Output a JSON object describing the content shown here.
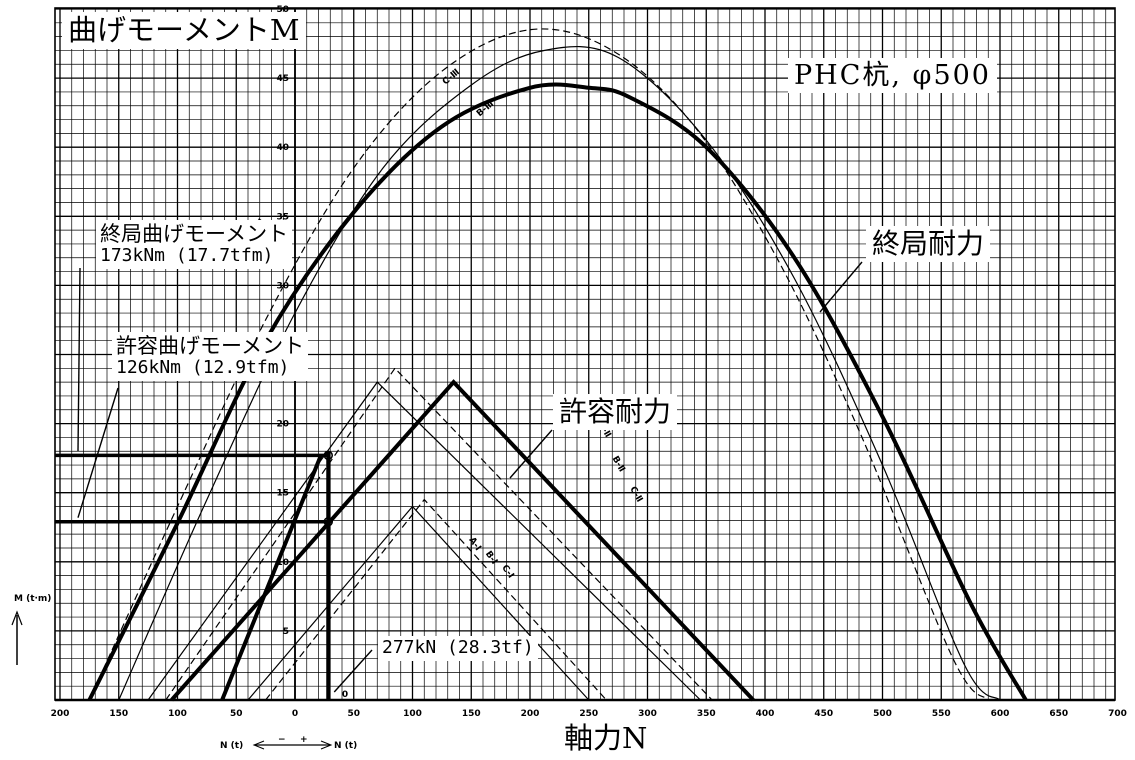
{
  "chart_data": {
    "type": "line",
    "title": "PHC杭, φ500",
    "ylabel": "曲げモーメントM",
    "xlabel": "軸力N",
    "xlim": [
      -200,
      700
    ],
    "ylim": [
      0,
      50
    ],
    "grid": true,
    "x_ticks": [
      "200",
      "150",
      "100",
      "50",
      "0",
      "50",
      "100",
      "150",
      "200",
      "250",
      "300",
      "350",
      "400",
      "450",
      "500",
      "550",
      "600",
      "650",
      "700"
    ],
    "y_ticks": [
      "5",
      "10",
      "15",
      "20",
      "25",
      "30",
      "35",
      "40",
      "45",
      "50"
    ],
    "y_unit": "M (t·m)",
    "direction": {
      "left": "N (t)",
      "minus": "−",
      "plus": "+",
      "right": "N (t)"
    },
    "series": [
      {
        "name": "終局耐力",
        "style": "thick",
        "x": [
          -175,
          -100,
          -25,
          50,
          125,
          200,
          250,
          285,
          350,
          425,
          500,
          575,
          622
        ],
        "y": [
          0,
          12.8,
          26,
          35.3,
          41.5,
          44.3,
          44.3,
          43.6,
          40,
          32,
          20.5,
          7,
          0
        ]
      },
      {
        "name": "A-Ⅱ",
        "style": "thin",
        "x": [
          -150,
          -75,
          0,
          75,
          150,
          212,
          275,
          350,
          425,
          500,
          570,
          600
        ],
        "y": [
          0,
          14.5,
          28,
          38.5,
          44.5,
          47,
          46.5,
          40.5,
          30.5,
          17,
          2.5,
          0
        ]
      },
      {
        "name": "C-Ⅲ",
        "style": "dashed",
        "x": [
          -175,
          -100,
          -25,
          50,
          125,
          200,
          270,
          340,
          410,
          480,
          560,
          590
        ],
        "y": [
          0,
          14,
          27.5,
          38.5,
          45.5,
          48.5,
          47,
          41.5,
          32,
          19.5,
          3,
          0
        ]
      },
      {
        "name": "許容耐力",
        "style": "thick",
        "x": [
          -105,
          135,
          390
        ],
        "y": [
          0,
          23,
          0
        ]
      },
      {
        "name": "許容耐力-2",
        "style": "thick",
        "x": [
          -62,
          22
        ],
        "y": [
          0,
          17.7
        ]
      },
      {
        "name": "A-Ⅱ許容",
        "style": "thin",
        "x": [
          -125,
          70,
          345
        ],
        "y": [
          0,
          23,
          0
        ]
      },
      {
        "name": "C-Ⅲ許容",
        "style": "dashed",
        "x": [
          -110,
          85,
          355
        ],
        "y": [
          0,
          24,
          0
        ]
      },
      {
        "name": "A-Ⅰ",
        "style": "thin",
        "x": [
          -40,
          100,
          250
        ],
        "y": [
          0,
          14,
          0
        ]
      },
      {
        "name": "B-Ⅰ",
        "style": "dashed",
        "x": [
          -25,
          110,
          265
        ],
        "y": [
          0,
          14.5,
          0
        ]
      }
    ],
    "curve_labels": [
      "C-Ⅲ",
      "B-Ⅲ",
      "A-Ⅲ",
      "A-Ⅱ",
      "B-Ⅱ",
      "C-Ⅱ",
      "A-Ⅰ",
      "B-Ⅰ",
      "C-Ⅰ"
    ],
    "reference_lines": {
      "ultimate_moment_tfm": 17.7,
      "allowable_moment_tfm": 12.9,
      "axial_force_tf": 28.3
    },
    "annotations": {
      "ultimate_curve": "終局耐力",
      "allowable_curve": "許容耐力",
      "ultimate_moment_title": "終局曲げモーメント",
      "ultimate_moment_value": "173kNm (17.7tfm)",
      "allowable_moment_title": "許容曲げモーメント",
      "allowable_moment_value": "126kNm (12.9tfm)",
      "axial_force": "277kN (28.3tf)"
    }
  }
}
